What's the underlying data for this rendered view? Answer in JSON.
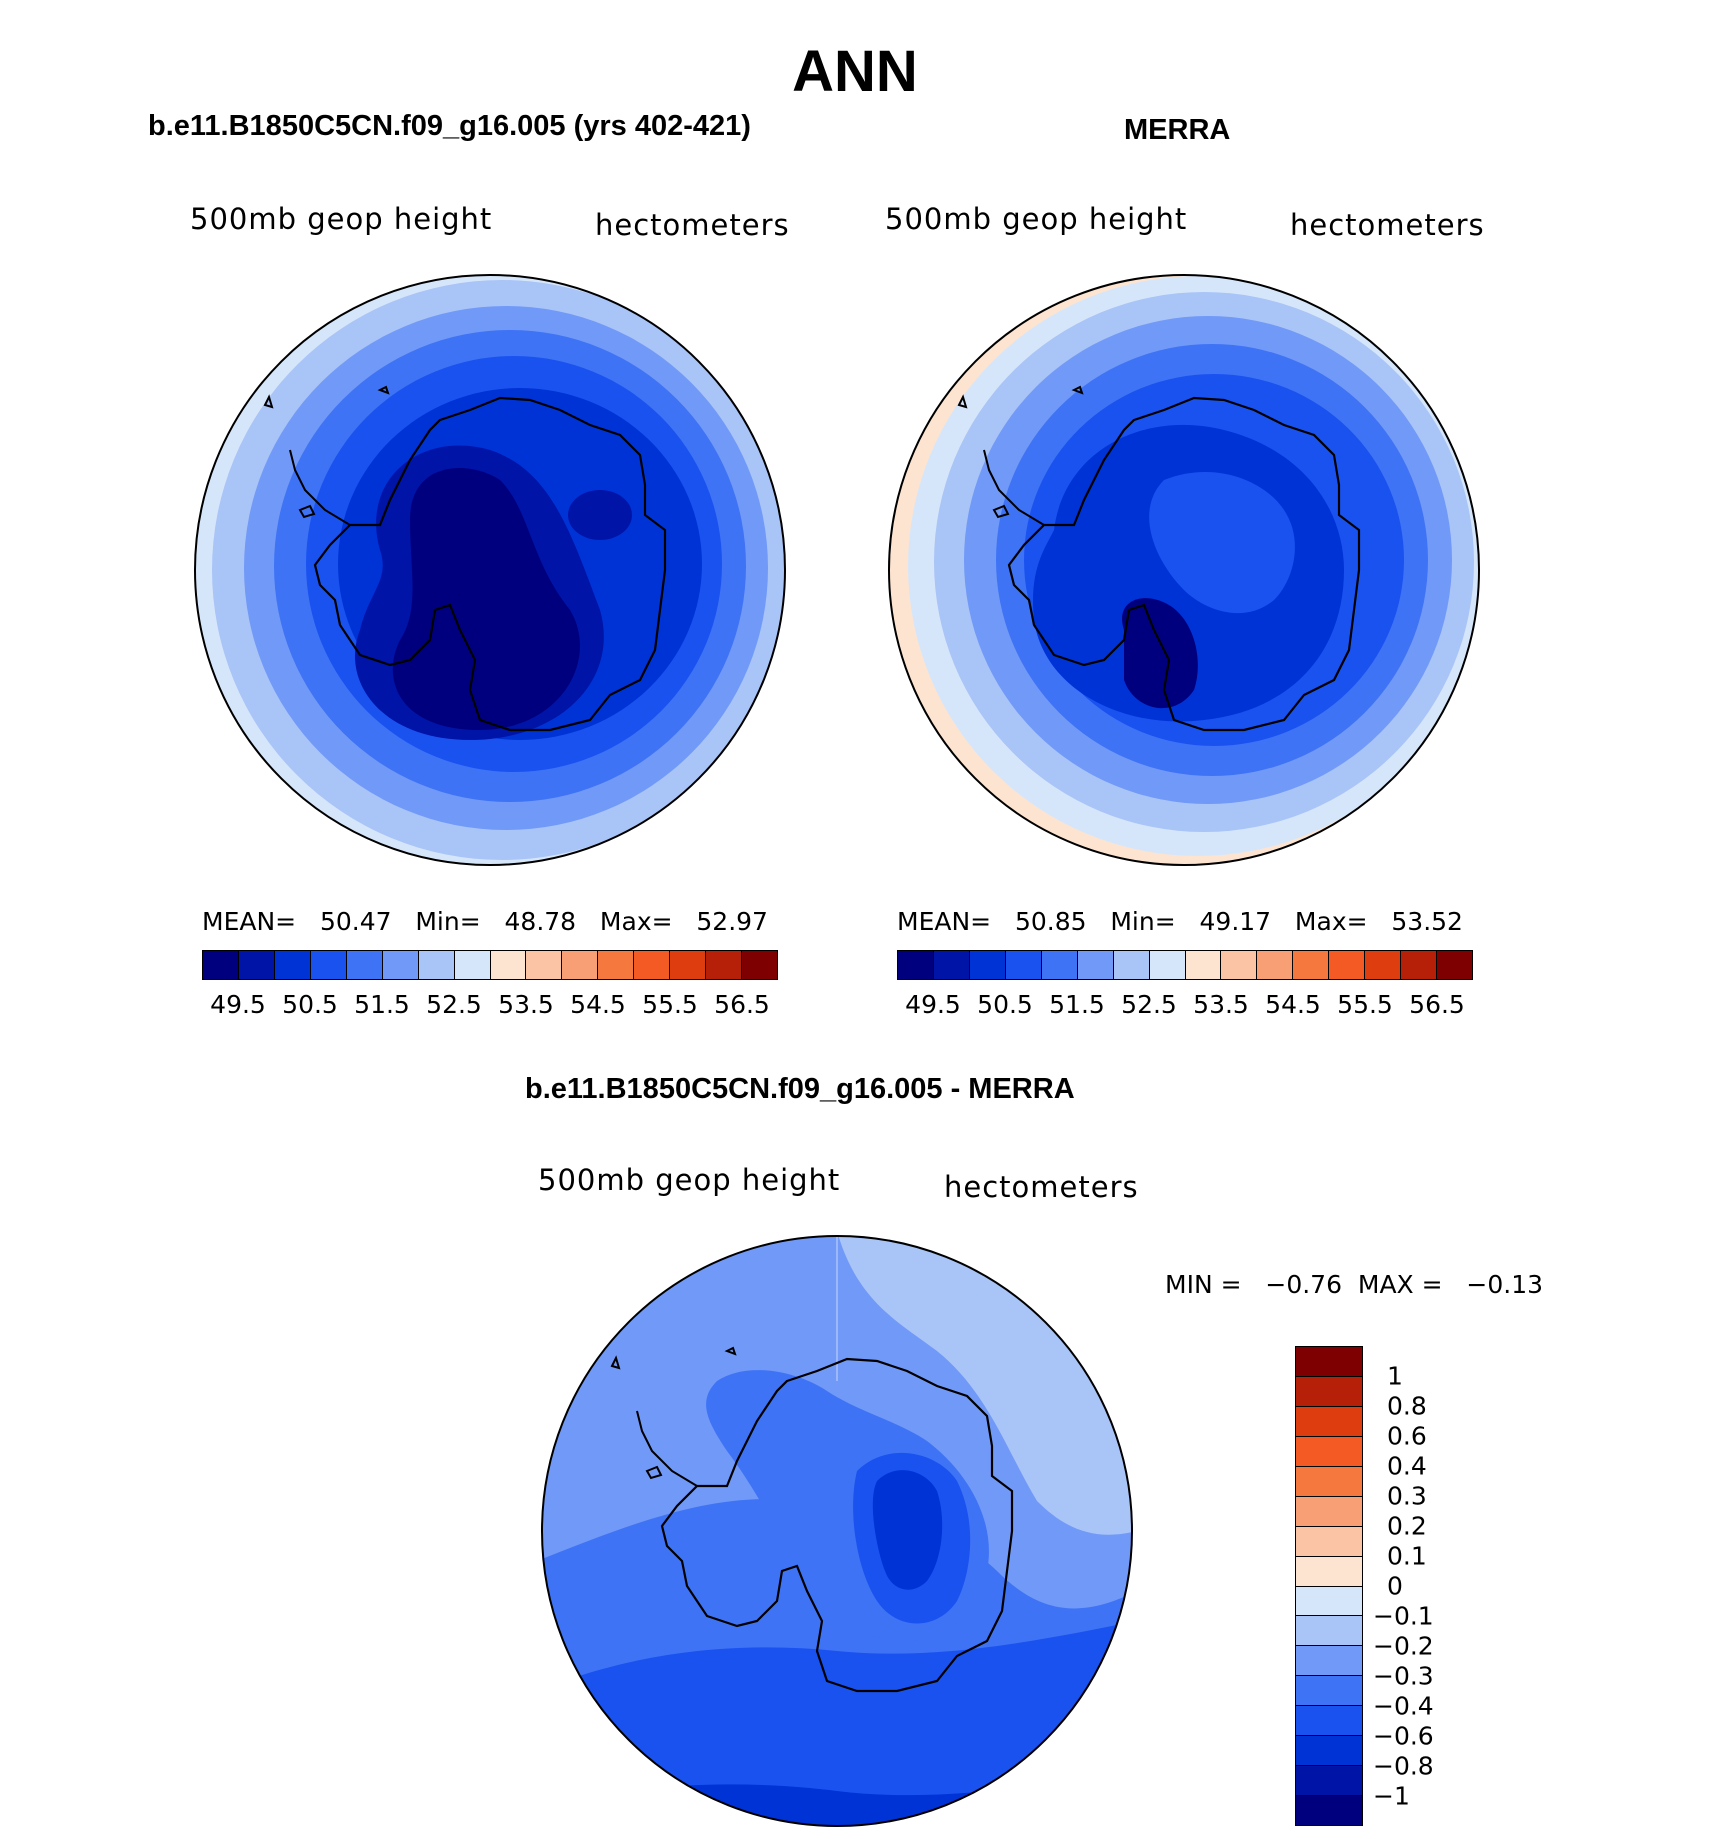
{
  "title": "ANN",
  "panels": [
    {
      "title": "b.e11.B1850C5CN.f09_g16.005 (yrs 402-421)",
      "variable": "500mb geop height",
      "units": "hectometers",
      "stats": "MEAN=   50.47   Min=   48.78   Max=   52.97",
      "mean": 50.47,
      "min": 48.78,
      "max": 52.97
    },
    {
      "title": "MERRA",
      "variable": "500mb geop height",
      "units": "hectometers",
      "stats": "MEAN=   50.85   Min=   49.17   Max=   53.52",
      "mean": 50.85,
      "min": 49.17,
      "max": 53.52
    },
    {
      "title": "b.e11.B1850C5CN.f09_g16.005 - MERRA",
      "variable": "500mb geop height",
      "units": "hectometers",
      "stats": "MIN =   −0.76  MAX =   −0.13",
      "min": -0.76,
      "max": -0.13
    }
  ],
  "colorbar_main": {
    "colors": [
      "#00007f",
      "#0014a7",
      "#0033d6",
      "#1a52f0",
      "#3f73f5",
      "#7199f7",
      "#a9c4f7",
      "#d6e6fa",
      "#fde4d0",
      "#fbc4a4",
      "#f89f76",
      "#f5783f",
      "#f35a24",
      "#de3d0f",
      "#b62008",
      "#7f0000"
    ],
    "labels": [
      "49.5",
      "50.5",
      "51.5",
      "52.5",
      "53.5",
      "54.5",
      "55.5",
      "56.5"
    ]
  },
  "colorbar_diff": {
    "colors": [
      "#7f0000",
      "#b62008",
      "#de3d0f",
      "#f35a24",
      "#f5783f",
      "#f89f76",
      "#fbc4a4",
      "#fde4d0",
      "#d6e6fa",
      "#a9c4f7",
      "#7199f7",
      "#3f73f5",
      "#1a52f0",
      "#0033d6",
      "#0014a7",
      "#00007f"
    ],
    "labels": [
      "1",
      "0.8",
      "0.6",
      "0.4",
      "0.3",
      "0.2",
      "0.1",
      "0",
      "−0.1",
      "−0.2",
      "−0.3",
      "−0.4",
      "−0.6",
      "−0.8",
      "−1"
    ]
  }
}
